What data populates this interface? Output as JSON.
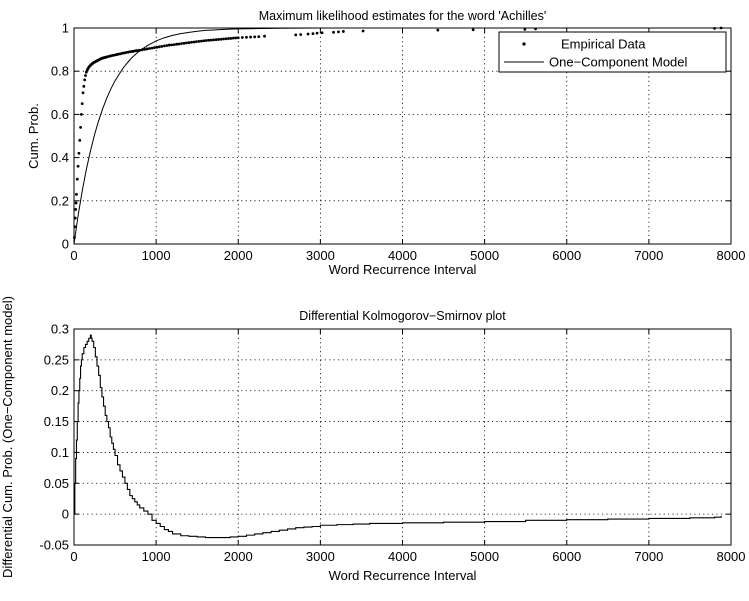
{
  "chart_data": [
    {
      "type": "line",
      "title": "Maximum likelihood estimates for the word 'Achilles'",
      "xlabel": "Word Recurrence Interval",
      "ylabel": "Cum. Prob.",
      "xlim": [
        0,
        8000
      ],
      "ylim": [
        0,
        1
      ],
      "xticks": [
        0,
        1000,
        2000,
        3000,
        4000,
        5000,
        6000,
        7000,
        8000
      ],
      "yticks": [
        0,
        0.2,
        0.4,
        0.6,
        0.8,
        1
      ],
      "grid": true,
      "legend": {
        "placement": "top-right",
        "entries": [
          "Empirical Data",
          "One−Component Model"
        ]
      },
      "series": [
        {
          "name": "Empirical Data",
          "style": "points",
          "x": [
            5,
            10,
            15,
            20,
            25,
            30,
            40,
            50,
            60,
            70,
            80,
            90,
            100,
            110,
            120,
            130,
            140,
            150,
            160,
            170,
            180,
            190,
            200,
            210,
            220,
            230,
            240,
            250,
            260,
            270,
            280,
            290,
            300,
            310,
            320,
            330,
            340,
            350,
            360,
            370,
            380,
            390,
            400,
            420,
            440,
            460,
            480,
            500,
            520,
            540,
            560,
            580,
            600,
            620,
            640,
            660,
            680,
            700,
            720,
            740,
            760,
            780,
            800,
            830,
            860,
            890,
            920,
            950,
            980,
            1010,
            1040,
            1070,
            1100,
            1130,
            1160,
            1190,
            1220,
            1250,
            1280,
            1310,
            1340,
            1370,
            1400,
            1430,
            1460,
            1490,
            1520,
            1550,
            1580,
            1610,
            1640,
            1670,
            1700,
            1730,
            1760,
            1790,
            1820,
            1850,
            1880,
            1910,
            1940,
            1970,
            2000,
            2050,
            2100,
            2150,
            2200,
            2250,
            2320,
            2700,
            2760,
            2850,
            2910,
            2960,
            3020,
            3160,
            3220,
            3280,
            3520,
            4430,
            4860,
            5490,
            5620,
            7800,
            7880
          ],
          "y": [
            0.03,
            0.08,
            0.12,
            0.16,
            0.19,
            0.23,
            0.3,
            0.36,
            0.42,
            0.48,
            0.54,
            0.6,
            0.65,
            0.7,
            0.73,
            0.76,
            0.78,
            0.795,
            0.805,
            0.812,
            0.818,
            0.823,
            0.827,
            0.831,
            0.834,
            0.837,
            0.84,
            0.842,
            0.844,
            0.846,
            0.848,
            0.85,
            0.852,
            0.854,
            0.856,
            0.858,
            0.86,
            0.861,
            0.862,
            0.863,
            0.864,
            0.865,
            0.866,
            0.868,
            0.87,
            0.872,
            0.874,
            0.875,
            0.877,
            0.879,
            0.88,
            0.882,
            0.884,
            0.885,
            0.887,
            0.888,
            0.89,
            0.891,
            0.892,
            0.894,
            0.895,
            0.896,
            0.897,
            0.899,
            0.901,
            0.903,
            0.905,
            0.907,
            0.909,
            0.911,
            0.913,
            0.915,
            0.917,
            0.919,
            0.921,
            0.922,
            0.923,
            0.925,
            0.926,
            0.928,
            0.929,
            0.931,
            0.932,
            0.934,
            0.935,
            0.937,
            0.938,
            0.939,
            0.941,
            0.942,
            0.943,
            0.944,
            0.945,
            0.946,
            0.947,
            0.948,
            0.949,
            0.95,
            0.951,
            0.952,
            0.953,
            0.954,
            0.955,
            0.956,
            0.957,
            0.958,
            0.959,
            0.96,
            0.962,
            0.968,
            0.97,
            0.972,
            0.974,
            0.976,
            0.978,
            0.98,
            0.982,
            0.984,
            0.986,
            0.99,
            0.992,
            0.994,
            0.996,
            0.998,
            1.0
          ]
        },
        {
          "name": "One−Component Model",
          "style": "line",
          "x": [
            0,
            50,
            100,
            150,
            200,
            250,
            300,
            350,
            400,
            450,
            500,
            600,
            700,
            800,
            900,
            1000,
            1100,
            1200,
            1300,
            1400,
            1500,
            1600,
            1700,
            1800,
            1900,
            2000,
            2500,
            3000,
            4000,
            5000,
            6000,
            7000,
            8000
          ],
          "y": [
            0,
            0.132,
            0.245,
            0.345,
            0.43,
            0.506,
            0.571,
            0.627,
            0.676,
            0.719,
            0.756,
            0.816,
            0.861,
            0.895,
            0.92,
            0.94,
            0.955,
            0.966,
            0.974,
            0.98,
            0.985,
            0.989,
            0.991,
            0.993,
            0.995,
            0.996,
            0.999,
            1.0,
            1.0,
            1.0,
            1.0,
            1.0,
            1.0
          ]
        }
      ]
    },
    {
      "type": "line",
      "title": "Differential Kolmogorov−Smirnov plot",
      "xlabel": "Word Recurrence Interval",
      "ylabel": "Differential Cum. Prob. (One−Component model)",
      "xlim": [
        0,
        8000
      ],
      "ylim": [
        -0.05,
        0.3
      ],
      "xticks": [
        0,
        1000,
        2000,
        3000,
        4000,
        5000,
        6000,
        7000,
        8000
      ],
      "yticks": [
        -0.05,
        0,
        0.05,
        0.1,
        0.15,
        0.2,
        0.25,
        0.3
      ],
      "grid": true,
      "series": [
        {
          "style": "step",
          "x": [
            0,
            10,
            20,
            30,
            40,
            50,
            60,
            70,
            80,
            90,
            100,
            120,
            140,
            160,
            180,
            200,
            210,
            220,
            240,
            260,
            280,
            300,
            320,
            340,
            360,
            380,
            400,
            420,
            440,
            460,
            480,
            500,
            530,
            560,
            590,
            620,
            650,
            680,
            710,
            740,
            770,
            800,
            850,
            900,
            950,
            1000,
            1050,
            1100,
            1150,
            1200,
            1300,
            1400,
            1500,
            1600,
            1700,
            1800,
            1900,
            2000,
            2100,
            2200,
            2300,
            2400,
            2500,
            2600,
            2700,
            2800,
            2900,
            3000,
            3200,
            3400,
            3600,
            3800,
            4000,
            4500,
            5000,
            5500,
            6000,
            6500,
            7000,
            7500,
            7800,
            7880
          ],
          "y": [
            0.0,
            0.05,
            0.09,
            0.12,
            0.15,
            0.18,
            0.2,
            0.22,
            0.24,
            0.25,
            0.26,
            0.27,
            0.275,
            0.28,
            0.285,
            0.29,
            0.285,
            0.28,
            0.27,
            0.255,
            0.24,
            0.225,
            0.205,
            0.19,
            0.175,
            0.16,
            0.15,
            0.14,
            0.125,
            0.115,
            0.105,
            0.095,
            0.08,
            0.07,
            0.06,
            0.05,
            0.04,
            0.03,
            0.025,
            0.02,
            0.015,
            0.01,
            0.005,
            0.0,
            -0.01,
            -0.015,
            -0.02,
            -0.025,
            -0.028,
            -0.032,
            -0.035,
            -0.036,
            -0.037,
            -0.038,
            -0.038,
            -0.038,
            -0.037,
            -0.036,
            -0.034,
            -0.032,
            -0.03,
            -0.028,
            -0.026,
            -0.024,
            -0.022,
            -0.021,
            -0.02,
            -0.018,
            -0.017,
            -0.016,
            -0.015,
            -0.015,
            -0.014,
            -0.013,
            -0.012,
            -0.01,
            -0.009,
            -0.008,
            -0.007,
            -0.006,
            -0.005,
            -0.003
          ]
        }
      ]
    }
  ]
}
